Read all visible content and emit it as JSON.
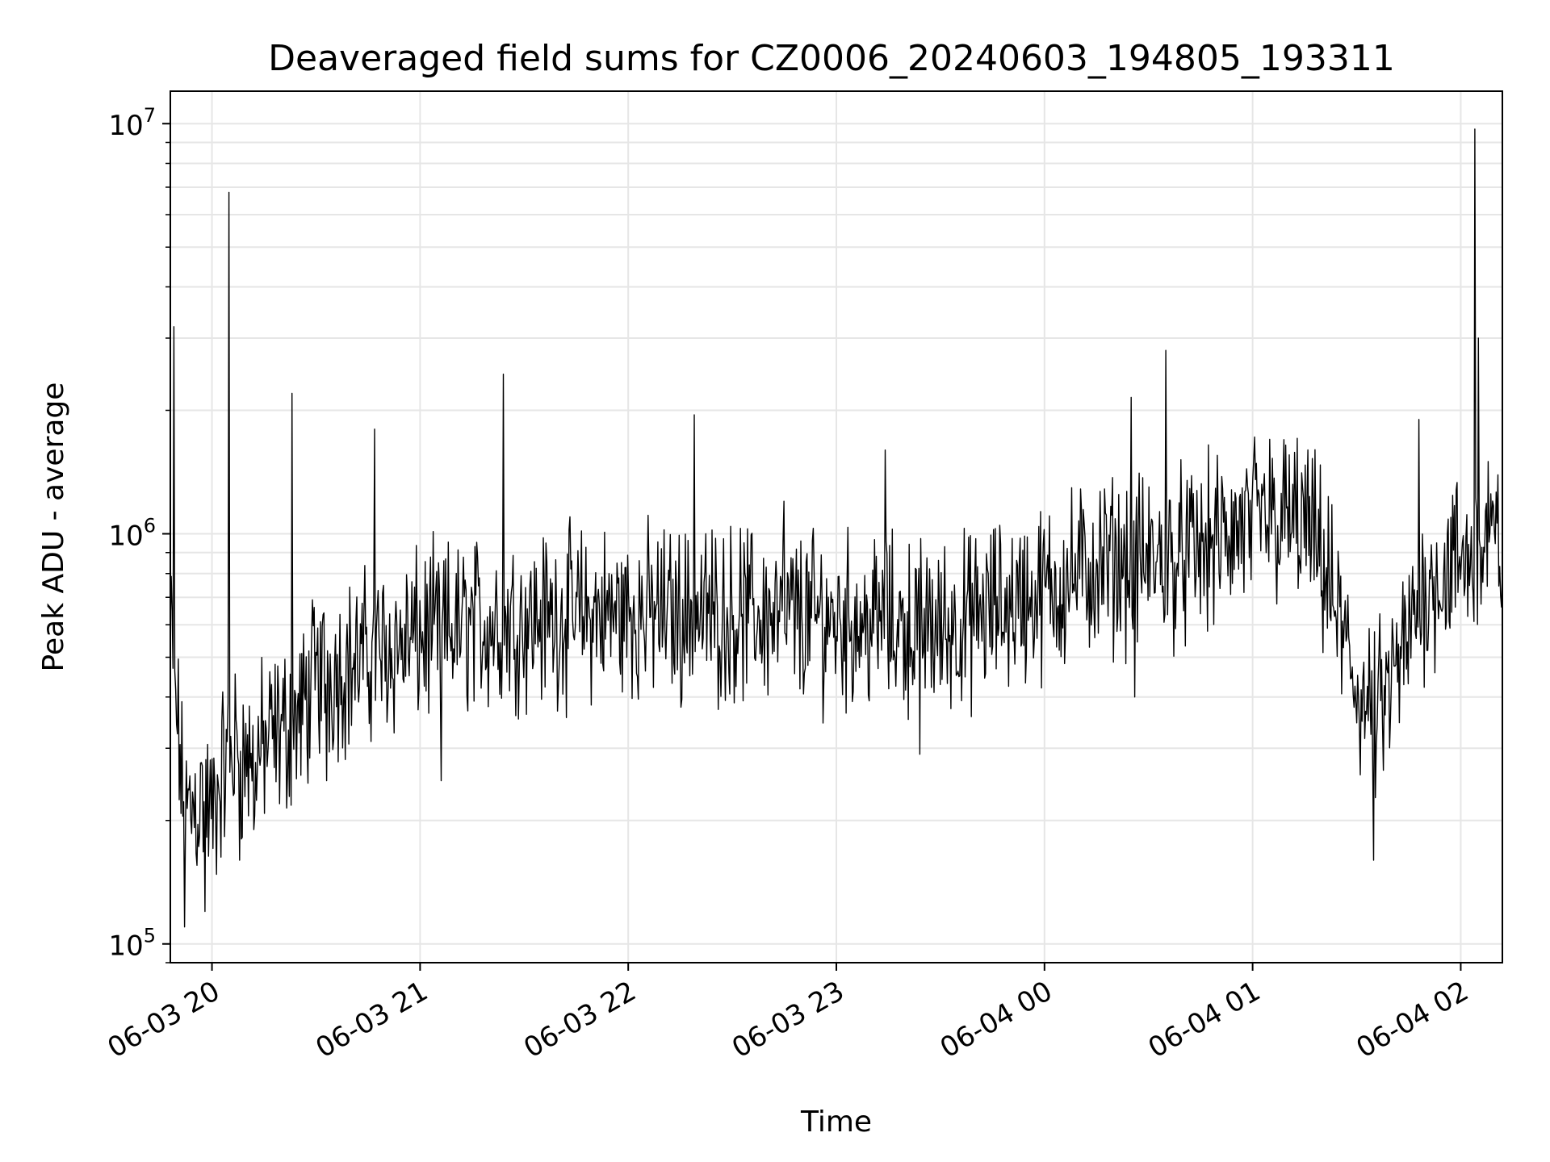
{
  "chart_data": {
    "type": "line",
    "title": "Deaveraged field sums for CZ0006_20240603_194805_193311",
    "xlabel": "Time",
    "ylabel": "Peak ADU - average",
    "yscale": "log",
    "ylim": [
      90000,
      12000000
    ],
    "xlim": [
      "2024-06-03 19:48",
      "2024-06-04 02:12"
    ],
    "grid": true,
    "line_color": "#000000",
    "grid_color": "#e6e6e6",
    "x_ticks": [
      {
        "label": "06-03 20",
        "value": "2024-06-03 20:00"
      },
      {
        "label": "06-03 21",
        "value": "2024-06-03 21:00"
      },
      {
        "label": "06-03 22",
        "value": "2024-06-03 22:00"
      },
      {
        "label": "06-03 23",
        "value": "2024-06-03 23:00"
      },
      {
        "label": "06-04 00",
        "value": "2024-06-04 00:00"
      },
      {
        "label": "06-04 01",
        "value": "2024-06-04 01:00"
      },
      {
        "label": "06-04 02",
        "value": "2024-06-04 02:00"
      }
    ],
    "y_ticks": [
      {
        "base": "10",
        "exp": "5",
        "value": 100000
      },
      {
        "base": "10",
        "exp": "6",
        "value": 1000000
      },
      {
        "base": "10",
        "exp": "7",
        "value": 10000000
      }
    ],
    "series": [
      {
        "points": [
          [
            "2024-06-03 19:48",
            600000
          ],
          [
            "2024-06-03 19:50",
            350000
          ],
          [
            "2024-06-03 19:52",
            200000
          ],
          [
            "2024-06-03 19:55",
            220000
          ],
          [
            "2024-06-03 19:58",
            230000
          ],
          [
            "2024-06-03 20:00",
            200000
          ],
          [
            "2024-06-03 20:03",
            260000
          ],
          [
            "2024-06-03 20:06",
            300000
          ],
          [
            "2024-06-03 20:10",
            280000
          ],
          [
            "2024-06-03 20:15",
            300000
          ],
          [
            "2024-06-03 20:20",
            330000
          ],
          [
            "2024-06-03 20:25",
            350000
          ],
          [
            "2024-06-03 20:30",
            450000
          ],
          [
            "2024-06-03 20:40",
            480000
          ],
          [
            "2024-06-03 20:50",
            520000
          ],
          [
            "2024-06-03 21:00",
            560000
          ],
          [
            "2024-06-03 21:15",
            600000
          ],
          [
            "2024-06-03 21:30",
            620000
          ],
          [
            "2024-06-03 21:45",
            630000
          ],
          [
            "2024-06-03 22:00",
            640000
          ],
          [
            "2024-06-03 22:15",
            640000
          ],
          [
            "2024-06-03 22:30",
            640000
          ],
          [
            "2024-06-03 22:45",
            630000
          ],
          [
            "2024-06-03 23:00",
            620000
          ],
          [
            "2024-06-03 23:15",
            600000
          ],
          [
            "2024-06-03 23:30",
            590000
          ],
          [
            "2024-06-03 23:40",
            620000
          ],
          [
            "2024-06-03 23:50",
            680000
          ],
          [
            "2024-06-04 00:00",
            720000
          ],
          [
            "2024-06-04 00:10",
            800000
          ],
          [
            "2024-06-04 00:20",
            850000
          ],
          [
            "2024-06-04 00:30",
            850000
          ],
          [
            "2024-06-04 00:40",
            880000
          ],
          [
            "2024-06-04 00:50",
            950000
          ],
          [
            "2024-06-04 01:00",
            1050000
          ],
          [
            "2024-06-04 01:10",
            1080000
          ],
          [
            "2024-06-04 01:15",
            1050000
          ],
          [
            "2024-06-04 01:20",
            850000
          ],
          [
            "2024-06-04 01:25",
            600000
          ],
          [
            "2024-06-04 01:30",
            420000
          ],
          [
            "2024-06-04 01:35",
            350000
          ],
          [
            "2024-06-04 01:40",
            420000
          ],
          [
            "2024-06-04 01:45",
            550000
          ],
          [
            "2024-06-04 01:50",
            750000
          ],
          [
            "2024-06-04 02:00",
            850000
          ],
          [
            "2024-06-04 02:05",
            900000
          ],
          [
            "2024-06-04 02:12",
            950000
          ]
        ],
        "spikes": [
          [
            "2024-06-03 19:49",
            3200000
          ],
          [
            "2024-06-03 19:52",
            110000
          ],
          [
            "2024-06-03 19:58",
            120000
          ],
          [
            "2024-06-03 20:05",
            6800000
          ],
          [
            "2024-06-03 20:08",
            160000
          ],
          [
            "2024-06-03 20:12",
            190000
          ],
          [
            "2024-06-03 20:23",
            2200000
          ],
          [
            "2024-06-03 20:33",
            250000
          ],
          [
            "2024-06-03 20:47",
            1800000
          ],
          [
            "2024-06-03 21:06",
            250000
          ],
          [
            "2024-06-03 21:24",
            2450000
          ],
          [
            "2024-06-03 22:19",
            1950000
          ],
          [
            "2024-06-03 22:45",
            1200000
          ],
          [
            "2024-06-03 23:14",
            1600000
          ],
          [
            "2024-06-03 23:24",
            290000
          ],
          [
            "2024-06-04 00:25",
            2150000
          ],
          [
            "2024-06-04 00:26",
            400000
          ],
          [
            "2024-06-04 00:35",
            2800000
          ],
          [
            "2024-06-04 01:05",
            1700000
          ],
          [
            "2024-06-04 01:35",
            160000
          ],
          [
            "2024-06-04 01:48",
            1900000
          ],
          [
            "2024-06-04 02:04",
            9700000
          ],
          [
            "2024-06-04 02:05",
            3000000
          ],
          [
            "2024-06-04 02:08",
            1500000
          ]
        ]
      }
    ]
  }
}
